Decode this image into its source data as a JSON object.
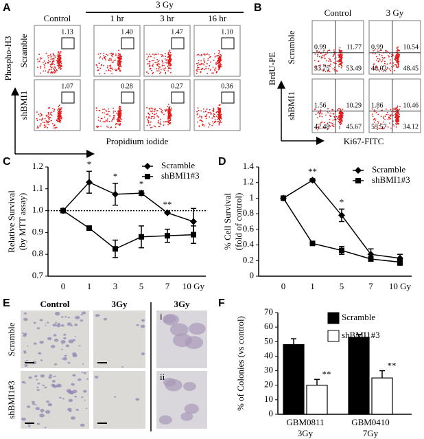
{
  "panel_labels": [
    "A",
    "B",
    "C",
    "D",
    "E",
    "F"
  ],
  "panel_a": {
    "treatment": "3 Gy",
    "columns": [
      "Control",
      "1 hr",
      "3 hr",
      "16 hr"
    ],
    "rows": [
      "Scramble",
      "shBMI1"
    ],
    "y_label": "Phospho-H3",
    "x_label": "Propidium iodide",
    "values": [
      [
        "1.13",
        "1.40",
        "1.47",
        "1.10"
      ],
      [
        "1.07",
        "0.28",
        "0.27",
        "0.36"
      ]
    ]
  },
  "panel_b": {
    "columns": [
      "Control",
      "3 Gy"
    ],
    "rows": [
      "Scramble",
      "shBMI1"
    ],
    "y_label": "BrdU-PE",
    "x_label": "Ki67-FITC",
    "quadrants": [
      [
        [
          "0.99",
          "11.77",
          "33.75",
          "53.49"
        ],
        [
          "0.99",
          "10.54",
          "40.02",
          "48.45"
        ]
      ],
      [
        [
          "1.56",
          "10.29",
          "42.48",
          "45.67"
        ],
        [
          "1.86",
          "10.46",
          "53.57",
          "34.12"
        ]
      ]
    ]
  },
  "panel_e": {
    "columns": [
      "Control",
      "3Gy",
      "3Gy"
    ],
    "rows": [
      "Scramble",
      "shBMI1#3"
    ],
    "insets": [
      "i",
      "ii"
    ]
  },
  "chart_data": [
    {
      "type": "line",
      "y_label": [
        "Relative Survival",
        "(by MTT assay)"
      ],
      "categories": [
        "0",
        "1",
        "3",
        "5",
        "7",
        "10 Gy"
      ],
      "series": [
        {
          "name": "Scramble",
          "color": "#000000",
          "marker": "diamond",
          "values": [
            1.0,
            1.13,
            1.075,
            1.08,
            0.99,
            0.95
          ],
          "errors": [
            0,
            0.05,
            0.05,
            0.01,
            0.005,
            0.06
          ],
          "significance": [
            null,
            "*",
            "*",
            "*",
            "**",
            null
          ]
        },
        {
          "name": "shBMI1#3",
          "color": "#000000",
          "marker": "square",
          "values": [
            1.0,
            0.92,
            0.825,
            0.88,
            0.885,
            0.89
          ],
          "errors": [
            0,
            0.01,
            0.04,
            0.05,
            0.03,
            0.04
          ]
        }
      ],
      "reference_line": 1,
      "ylim": [
        0.7,
        1.2
      ],
      "yticks": [
        0.7,
        0.8,
        0.9,
        {
          "value": 1,
          "label": "1.0"
        },
        1.1,
        1.2
      ]
    },
    {
      "type": "line",
      "y_label": [
        "% Cell Survival",
        "(fold of control)"
      ],
      "categories": [
        "0",
        "1",
        "5",
        "7",
        "10 Gy"
      ],
      "series": [
        {
          "name": "Scramble",
          "color": "#000000",
          "marker": "diamond",
          "values": [
            1.0,
            1.23,
            0.78,
            0.28,
            0.23
          ],
          "errors": [
            0,
            0.02,
            0.08,
            0.07,
            0.05
          ],
          "significance": [
            null,
            "**",
            "*",
            null,
            null
          ]
        },
        {
          "name": "shBMI1#3",
          "color": "#000000",
          "marker": "square",
          "values": [
            1.0,
            0.42,
            0.33,
            0.22,
            0.18
          ],
          "errors": [
            0,
            0.01,
            0.05,
            0.02,
            0.04
          ]
        }
      ],
      "ylim": [
        0,
        1.4
      ],
      "yticks": [
        0,
        0.2,
        0.4,
        0.6,
        0.8,
        1,
        1.2,
        1.4
      ]
    },
    {
      "type": "bar",
      "y_label": [
        "% of Colonies (vs control)"
      ],
      "categories": [
        "GBM0811",
        "GBM0410"
      ],
      "sublabels": [
        "3Gy",
        "7Gy"
      ],
      "series": [
        {
          "name": "Scramble",
          "color": "#000000",
          "values": [
            48,
            53
          ],
          "errors": [
            4,
            2
          ]
        },
        {
          "name": "shBMI1#3",
          "color": "#ffffff",
          "values": [
            20,
            25
          ],
          "errors": [
            4,
            5
          ],
          "significance": [
            "**",
            "**"
          ]
        }
      ],
      "ylim": [
        0,
        70
      ],
      "yticks": [
        0,
        10,
        20,
        30,
        40,
        50,
        60,
        70
      ]
    }
  ]
}
